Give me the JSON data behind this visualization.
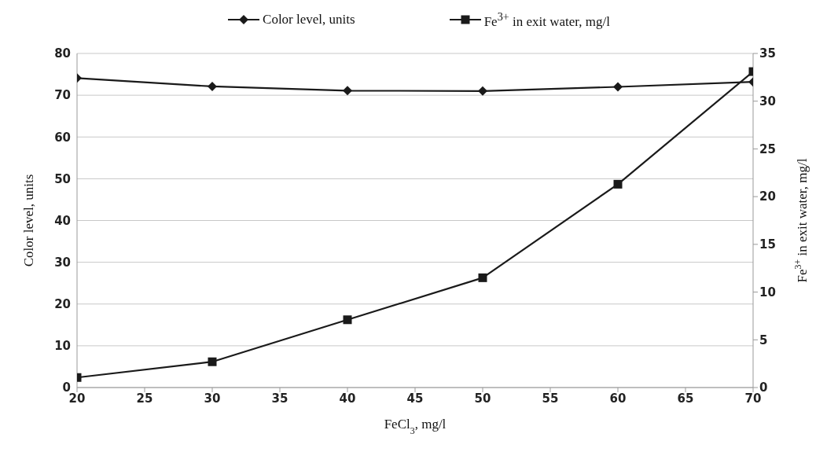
{
  "chart_data": {
    "type": "line",
    "xlabel": "FeCl$_{3}$, mg/l",
    "ylabel": "Color level, units",
    "y2label": "Fe$^{3+}$ in exit water, mg/l",
    "x": [
      20,
      30,
      40,
      50,
      60,
      70
    ],
    "series": [
      {
        "name": "Color level, units",
        "color": "#1a1a1a",
        "marker": "diamond",
        "values": [
          74.1,
          72.1,
          71.1,
          71,
          72,
          73.2
        ]
      },
      {
        "name": "Fe$^{3+}$ in exit water, mg/l",
        "color": "#1a1a1a",
        "marker": "square",
        "axis": "y2",
        "values": [
          1.05,
          2.7,
          7.1,
          11.5,
          21.3,
          33.1
        ]
      }
    ],
    "xlim": [
      20,
      70
    ],
    "xticks": [
      20,
      25,
      30,
      35,
      40,
      45,
      50,
      55,
      60,
      65,
      70
    ],
    "ylim": [
      0,
      80
    ],
    "yticks": [
      0,
      10,
      20,
      30,
      40,
      50,
      60,
      70,
      80
    ],
    "y2lim": [
      0,
      35
    ],
    "y2ticks": [
      0,
      5,
      10,
      15,
      20,
      25,
      30,
      35
    ],
    "grid": "y",
    "legend": "top",
    "line_style": "solid"
  }
}
